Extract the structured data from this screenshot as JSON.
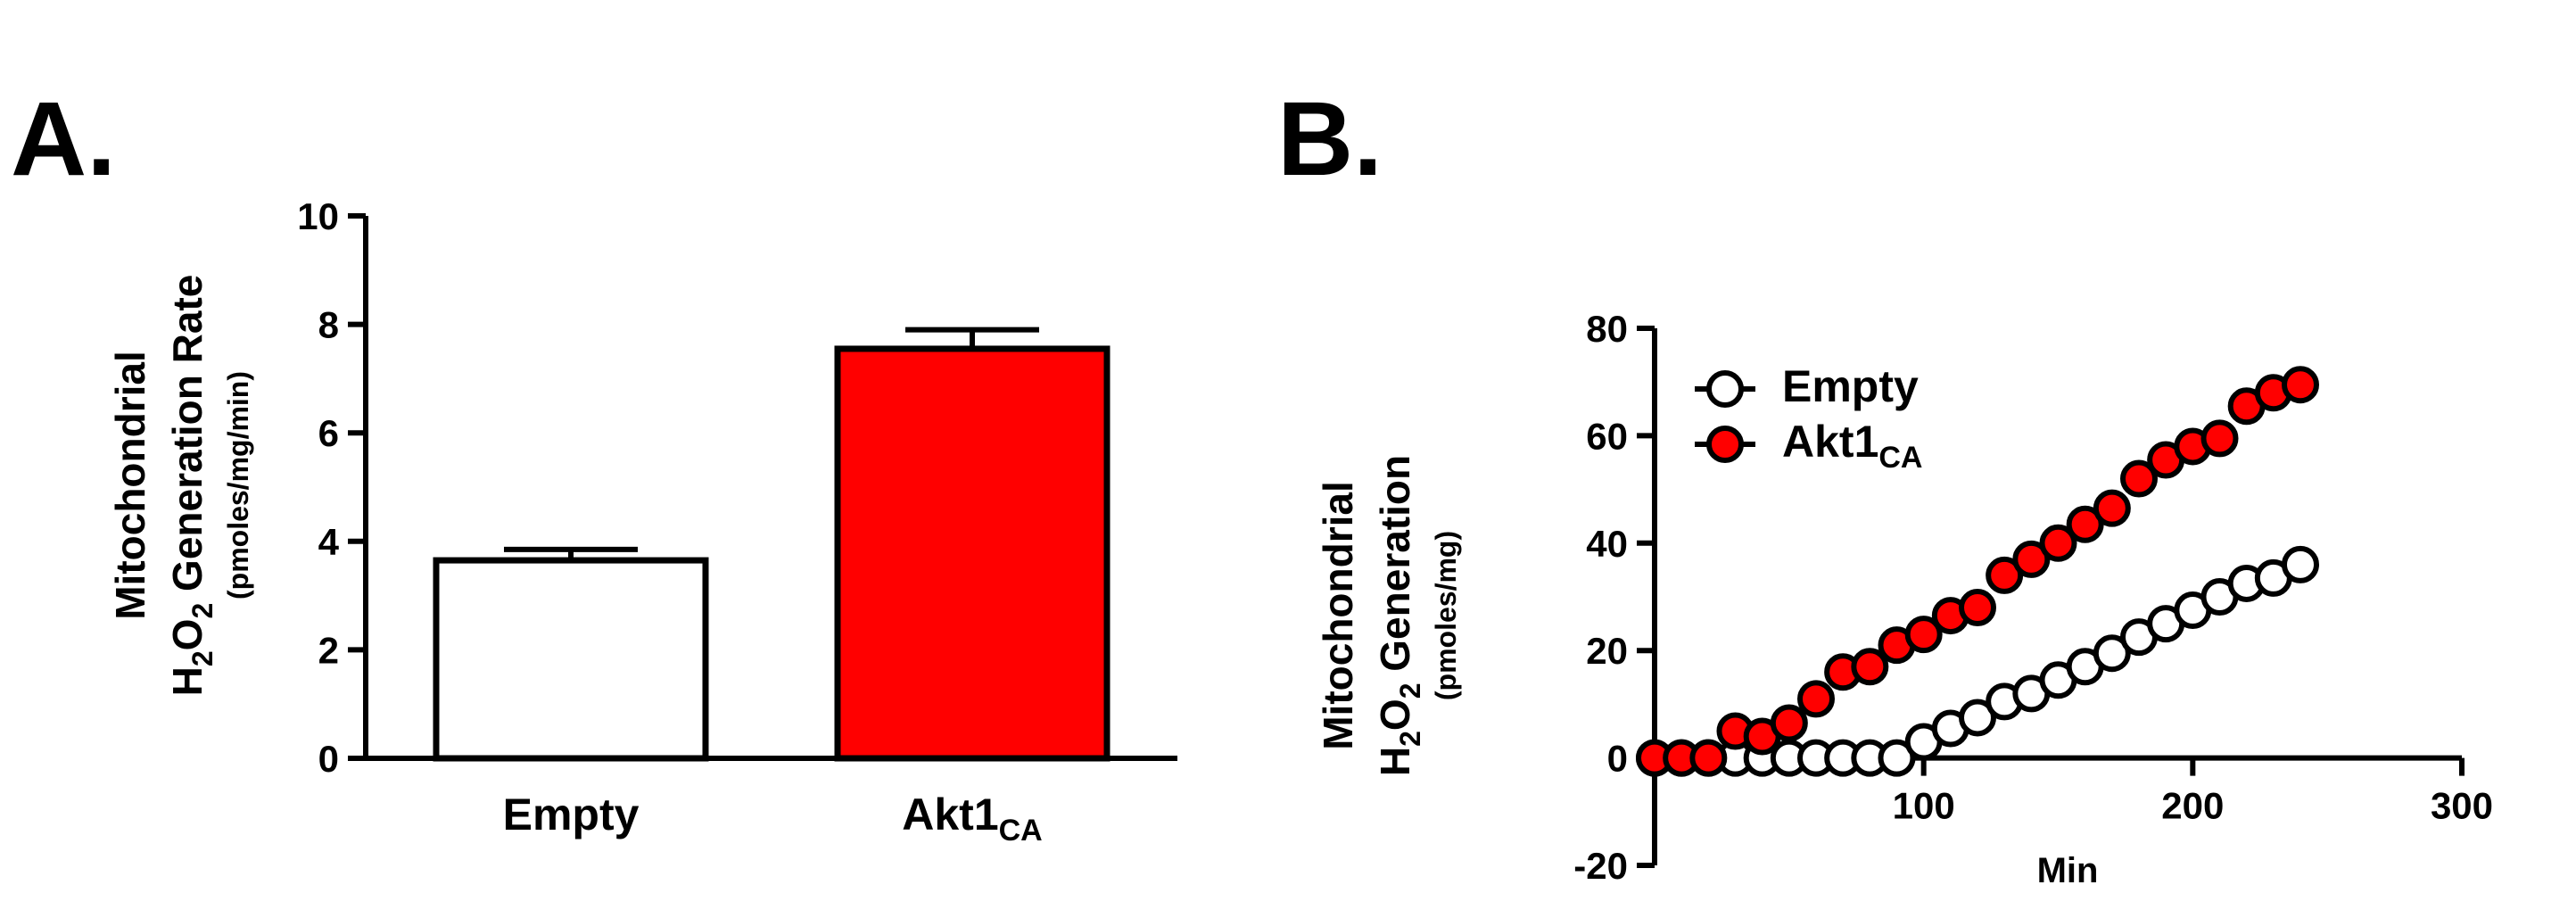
{
  "chart_data": [
    {
      "panel_label": "A.",
      "type": "bar",
      "categories": [
        "Empty",
        "Akt1CA"
      ],
      "category_labels": [
        {
          "main": "Empty",
          "sub": ""
        },
        {
          "main": "Akt1",
          "sub": "CA"
        }
      ],
      "values": [
        3.65,
        7.55
      ],
      "error": [
        0.2,
        0.35
      ],
      "bar_colors": [
        "#ffffff",
        "#ff0000"
      ],
      "ylim": [
        0,
        10
      ],
      "yticks": [
        0,
        2,
        4,
        6,
        8,
        10
      ],
      "ylabel": {
        "line1": "Mitochondrial",
        "line2_parts": {
          "a": "H",
          "b": "2",
          "c": "O",
          "d": "2",
          "e": " Generation Rate"
        },
        "unit": "(pmoles/mg/min)"
      },
      "xlabel": "",
      "title": ""
    },
    {
      "panel_label": "B.",
      "type": "scatter",
      "xlabel": "Min",
      "xlim": [
        0,
        300
      ],
      "xticks": [
        100,
        200,
        300
      ],
      "ylim": [
        -20,
        80
      ],
      "yticks": [
        -20,
        0,
        20,
        40,
        60,
        80
      ],
      "ylabel": {
        "line1": "Mitochondrial",
        "line2_parts": {
          "a": "H",
          "b": "2",
          "c": "O",
          "d": "2",
          "e": " Generation"
        },
        "unit": "(pmoles/mg)"
      },
      "legend_position": "top-left",
      "legend": [
        {
          "name": "Empty",
          "sub": ""
        },
        {
          "name": "Akt1",
          "sub": "CA"
        }
      ],
      "series": [
        {
          "name": "Empty",
          "marker": "open-circle",
          "color": "#ffffff",
          "x": [
            0,
            10,
            20,
            30,
            40,
            50,
            60,
            70,
            80,
            90,
            100,
            110,
            120,
            130,
            140,
            150,
            160,
            170,
            180,
            190,
            200,
            210,
            220,
            230,
            240
          ],
          "y": [
            0,
            0,
            0,
            0,
            0,
            0,
            0,
            0,
            0,
            0,
            3,
            5.5,
            7.5,
            10.5,
            12,
            14.5,
            17,
            19.5,
            22.5,
            25,
            27.5,
            30,
            32.5,
            33.5,
            36
          ]
        },
        {
          "name": "Akt1CA",
          "marker": "filled-circle",
          "color": "#ff0000",
          "x": [
            0,
            10,
            20,
            30,
            40,
            50,
            60,
            70,
            80,
            90,
            100,
            110,
            120,
            130,
            140,
            150,
            160,
            170,
            180,
            190,
            200,
            210,
            220,
            230,
            240
          ],
          "y": [
            0,
            0,
            0,
            5,
            4,
            6.5,
            11,
            16,
            17,
            21,
            23,
            26.5,
            28,
            34,
            37,
            40,
            43.5,
            46.5,
            52,
            55.5,
            58,
            59.5,
            65.5,
            68,
            69.5
          ]
        }
      ]
    }
  ]
}
